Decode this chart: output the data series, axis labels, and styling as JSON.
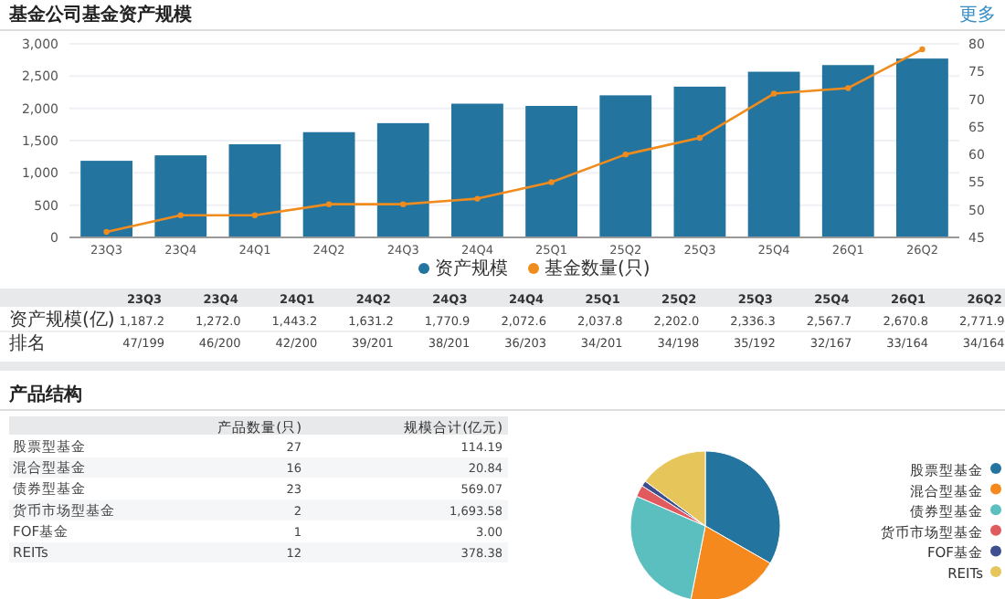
{
  "chart_data": [
    {
      "type": "bar",
      "title": "基金公司基金资产规模",
      "categories": [
        "23Q3",
        "23Q4",
        "24Q1",
        "24Q2",
        "24Q3",
        "24Q4",
        "25Q1",
        "25Q2",
        "25Q3",
        "25Q4",
        "26Q1",
        "26Q2"
      ],
      "series": [
        {
          "name": "资产规模",
          "type": "bar",
          "color": "#2474a0",
          "values": [
            1187.2,
            1272.0,
            1443.2,
            1631.2,
            1770.9,
            2072.6,
            2037.8,
            2202.0,
            2336.3,
            2567.7,
            2670.8,
            2771.9
          ]
        },
        {
          "name": "基金数量(只)",
          "type": "line",
          "axis": "y2",
          "color": "#f08c1e",
          "values": [
            46,
            49,
            49,
            51,
            51,
            52,
            55,
            60,
            63,
            71,
            72,
            79
          ]
        }
      ],
      "ylim": [
        0,
        3000
      ],
      "yticks": [
        0,
        {
          "value": 500,
          "label": "500"
        },
        {
          "value": 1000,
          "label": "1,000"
        },
        {
          "value": 1500,
          "label": "1,500"
        },
        {
          "value": 2000,
          "label": "2,000"
        },
        {
          "value": 2500,
          "label": "2,500"
        },
        {
          "value": 3000,
          "label": "3,000"
        }
      ],
      "y2lim": [
        45,
        80
      ],
      "y2ticks": [
        45,
        50,
        55,
        60,
        65,
        70,
        75,
        80
      ],
      "grid": "y",
      "legend": "bottom",
      "marker": "circle",
      "annotations": [
        "更多",
        "资产规模(亿)",
        "排名",
        "1,187.2",
        "1,272.0",
        "1,443.2",
        "1,631.2",
        "1,770.9",
        "2,072.6",
        "2,037.8",
        "2,202.0",
        "2,336.3",
        "2,567.7",
        "2,670.8",
        "2,771.9",
        "47/199",
        "46/200",
        "42/200",
        "39/201",
        "38/201",
        "36/203",
        "34/201",
        "34/198",
        "35/192",
        "32/167",
        "33/164",
        "34/164"
      ]
    },
    {
      "type": "pie",
      "categories": [
        "股票型基金",
        "混合型基金",
        "债券型基金",
        "货币市场型基金",
        "FOF基金",
        "REITs"
      ],
      "values": [
        33.3,
        19.8,
        28.4,
        2.5,
        1.2,
        14.8
      ],
      "colors": [
        "#2474a0",
        "#f5891e",
        "#5bbfc0",
        "#e05a5e",
        "#3d4f8f",
        "#e6c55a"
      ],
      "legend": "right",
      "annotations": [
        "产品结构",
        "产品数量(只)",
        "规模合计(亿元)",
        "27",
        "114.19",
        "16",
        "20.84",
        "23",
        "569.07",
        "2",
        "1,693.58",
        "1",
        "3.00",
        "12",
        "378.38"
      ]
    }
  ]
}
